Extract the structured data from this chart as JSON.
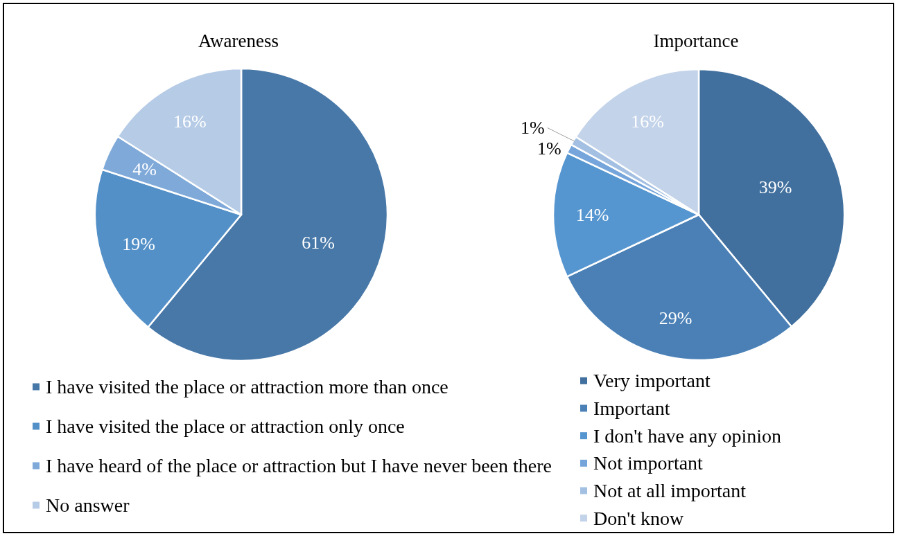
{
  "chart_data": [
    {
      "type": "pie",
      "title": "Awareness",
      "categories": [
        "I have visited the place or attraction more than once",
        "I have visited the place or attraction only once",
        "I have heard of the place or attraction but I have never been there",
        "No answer"
      ],
      "values": [
        61,
        19,
        4,
        16
      ],
      "colors": [
        "#4878a8",
        "#5490c8",
        "#7fa9d9",
        "#b5cbe6"
      ],
      "value_labels": [
        "61%",
        "19%",
        "4%",
        "16%"
      ],
      "legend": "bottom"
    },
    {
      "type": "pie",
      "title": "Importance",
      "categories": [
        "Very important",
        "Important",
        "I don't have any opinion",
        "Not important",
        "Not at all important",
        "Don't know"
      ],
      "values": [
        39,
        29,
        14,
        1,
        1,
        16
      ],
      "colors": [
        "#41709e",
        "#4a80b6",
        "#5696d0",
        "#76a5db",
        "#a3c0e3",
        "#c3d3e9"
      ],
      "value_labels": [
        "39%",
        "29%",
        "14%",
        "1%",
        "1%",
        "16%"
      ],
      "legend": "bottom"
    }
  ]
}
